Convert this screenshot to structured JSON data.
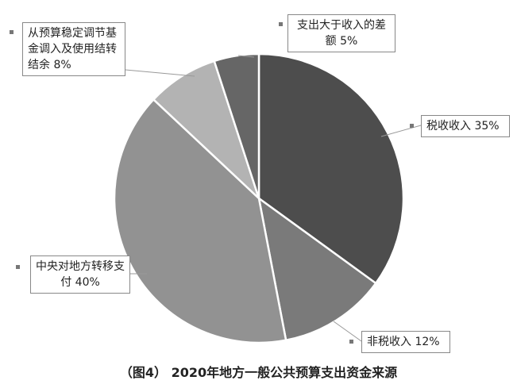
{
  "chart_data": {
    "type": "pie",
    "title": "（图4） 2020年地方一般公共预算支出资金来源",
    "categories": [
      "税收收入",
      "非税收入",
      "中央对地方转移支付",
      "从预算稳定调节基金调入及使用结转结余",
      "支出大于收入的差额"
    ],
    "values": [
      35,
      12,
      40,
      8,
      5
    ],
    "value_labels": [
      "35%",
      "12%",
      "40%",
      "8%",
      "5%"
    ],
    "colors": [
      "#4d4d4d",
      "#7a7a7a",
      "#929292",
      "#b3b3b3",
      "#666666"
    ]
  }
}
